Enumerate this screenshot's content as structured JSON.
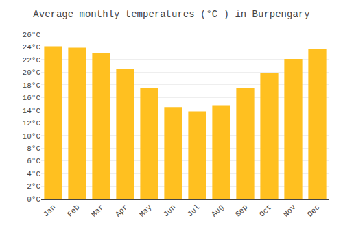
{
  "chart_data": {
    "type": "bar",
    "title": "Average monthly temperatures (°C ) in Burpengary",
    "categories": [
      "Jan",
      "Feb",
      "Mar",
      "Apr",
      "May",
      "Jun",
      "Jul",
      "Aug",
      "Sep",
      "Oct",
      "Nov",
      "Dec"
    ],
    "values": [
      24.1,
      23.9,
      23.0,
      20.5,
      17.5,
      14.5,
      13.8,
      14.8,
      17.5,
      19.9,
      22.1,
      23.7
    ],
    "color": "#FFC020",
    "ylim": [
      0,
      26
    ],
    "yticks": [
      {
        "value": 0,
        "label": "0°C"
      },
      {
        "value": 2,
        "label": "2°C"
      },
      {
        "value": 4,
        "label": "4°C"
      },
      {
        "value": 6,
        "label": "6°C"
      },
      {
        "value": 8,
        "label": "8°C"
      },
      {
        "value": 10,
        "label": "10°C"
      },
      {
        "value": 12,
        "label": "12°C"
      },
      {
        "value": 14,
        "label": "14°C"
      },
      {
        "value": 16,
        "label": "16°C"
      },
      {
        "value": 18,
        "label": "18°C"
      },
      {
        "value": 20,
        "label": "20°C"
      },
      {
        "value": 22,
        "label": "22°C"
      },
      {
        "value": 24,
        "label": "24°C"
      },
      {
        "value": 26,
        "label": "26°C"
      }
    ],
    "grid": true
  }
}
